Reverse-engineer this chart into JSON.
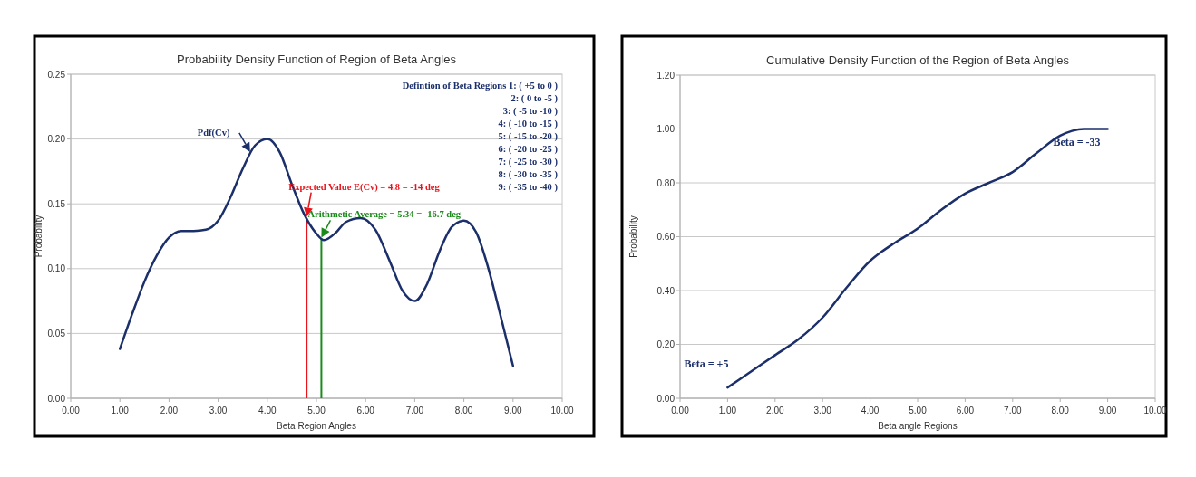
{
  "chart_data": [
    {
      "type": "line",
      "title": "Probability Density Function of Region of Beta Angles",
      "xlabel": "Beta Region Angles",
      "ylabel": "Probability",
      "xlim": [
        0,
        10
      ],
      "xticks": [
        {
          "value": 0,
          "label": "0.00"
        },
        {
          "value": 1,
          "label": "1.00"
        },
        {
          "value": 2,
          "label": "2.00"
        },
        {
          "value": 3,
          "label": "3.00"
        },
        {
          "value": 4,
          "label": "4.00"
        },
        {
          "value": 5,
          "label": "5.00"
        },
        {
          "value": 6,
          "label": "6.00"
        },
        {
          "value": 7,
          "label": "7.00"
        },
        {
          "value": 8,
          "label": "8.00"
        },
        {
          "value": 9,
          "label": "9.00"
        },
        {
          "value": 10,
          "label": "10.00"
        }
      ],
      "ylim": [
        0,
        0.25
      ],
      "yticks": [
        {
          "value": 0,
          "label": "0.00"
        },
        {
          "value": 0.05,
          "label": "0.05"
        },
        {
          "value": 0.1,
          "label": "0.10"
        },
        {
          "value": 0.15,
          "label": "0.15"
        },
        {
          "value": 0.2,
          "label": "0.20"
        },
        {
          "value": 0.25,
          "label": "0.25"
        }
      ],
      "grid": "y",
      "marker": "none",
      "line_style": "solid",
      "series": [
        {
          "color": "#1b2f6b",
          "x": [
            1,
            1.25,
            1.5,
            1.75,
            2,
            2.25,
            2.5,
            2.75,
            3,
            3.25,
            3.5,
            3.75,
            4,
            4.25,
            4.5,
            4.75,
            5,
            5.15,
            5.4,
            5.6,
            5.9,
            6.2,
            6.5,
            6.75,
            7,
            7.25,
            7.5,
            7.75,
            8,
            8.25,
            8.5,
            8.75,
            9
          ],
          "values": [
            0.038,
            0.065,
            0.09,
            0.11,
            0.124,
            0.129,
            0.129,
            0.13,
            0.137,
            0.155,
            0.177,
            0.195,
            0.2,
            0.19,
            0.165,
            0.142,
            0.127,
            0.122,
            0.128,
            0.136,
            0.139,
            0.13,
            0.105,
            0.083,
            0.075,
            0.088,
            0.113,
            0.132,
            0.137,
            0.128,
            0.1,
            0.063,
            0.025
          ]
        }
      ],
      "ref_lines": [
        {
          "axis": "x",
          "value": 4.8,
          "color": "#e8141b"
        },
        {
          "axis": "x",
          "value": 5.1,
          "color": "#1a8a1a"
        }
      ],
      "annotations": [
        {
          "text": "Pdf(Cv)",
          "x": 3.65,
          "y": 0.19
        },
        {
          "text": "Expected Value E(Cv) = 4.8 = -14 deg",
          "x": 4.8,
          "y": 0.14
        },
        {
          "text": "Arithmetic Average = 5.34 = -16.7 deg",
          "x": 5.1,
          "y": 0.124
        },
        "Defintion of Beta Regions 1: ( +5 to 0 )",
        "2: ( 0 to -5 )",
        "3: ( -5 to -10 )",
        "4: ( -10 to -15 )",
        "5: ( -15 to -20 )",
        "6: ( -20 to -25 )",
        "7: ( -25 to -30 )",
        "8: ( -30 to -35 )",
        "9: ( -35 to -40 )"
      ]
    },
    {
      "type": "line",
      "title": "Cumulative Density Function of the Region of Beta Angles",
      "xlabel": "Beta angle Regions",
      "ylabel": "Probability",
      "xlim": [
        0,
        10
      ],
      "xticks": [
        {
          "value": 0,
          "label": "0.00"
        },
        {
          "value": 1,
          "label": "1.00"
        },
        {
          "value": 2,
          "label": "2.00"
        },
        {
          "value": 3,
          "label": "3.00"
        },
        {
          "value": 4,
          "label": "4.00"
        },
        {
          "value": 5,
          "label": "5.00"
        },
        {
          "value": 6,
          "label": "6.00"
        },
        {
          "value": 7,
          "label": "7.00"
        },
        {
          "value": 8,
          "label": "8.00"
        },
        {
          "value": 9,
          "label": "9.00"
        },
        {
          "value": 10,
          "label": "10.00"
        }
      ],
      "ylim": [
        0,
        1.2
      ],
      "yticks": [
        {
          "value": 0,
          "label": "0.00"
        },
        {
          "value": 0.2,
          "label": "0.20"
        },
        {
          "value": 0.4,
          "label": "0.40"
        },
        {
          "value": 0.6,
          "label": "0.60"
        },
        {
          "value": 0.8,
          "label": "0.80"
        },
        {
          "value": 1,
          "label": "1.00"
        },
        {
          "value": 1.2,
          "label": "1.20"
        }
      ],
      "grid": "y",
      "marker": "none",
      "line_style": "solid",
      "series": [
        {
          "color": "#1b2f6b",
          "x": [
            1,
            1.5,
            2,
            2.5,
            3,
            3.5,
            4,
            4.25,
            4.5,
            5,
            5.5,
            6,
            6.5,
            7,
            7.5,
            8,
            8.25,
            8.5,
            8.75,
            9
          ],
          "values": [
            0.04,
            0.1,
            0.16,
            0.22,
            0.3,
            0.41,
            0.51,
            0.545,
            0.575,
            0.63,
            0.7,
            0.76,
            0.8,
            0.84,
            0.91,
            0.975,
            0.993,
            1.0,
            1.0,
            1.0
          ]
        }
      ],
      "annotations": [
        {
          "text": "Beta = +5",
          "x": 1,
          "y": 0.04
        },
        {
          "text": "Beta = -33",
          "x": 9,
          "y": 1
        }
      ]
    }
  ]
}
